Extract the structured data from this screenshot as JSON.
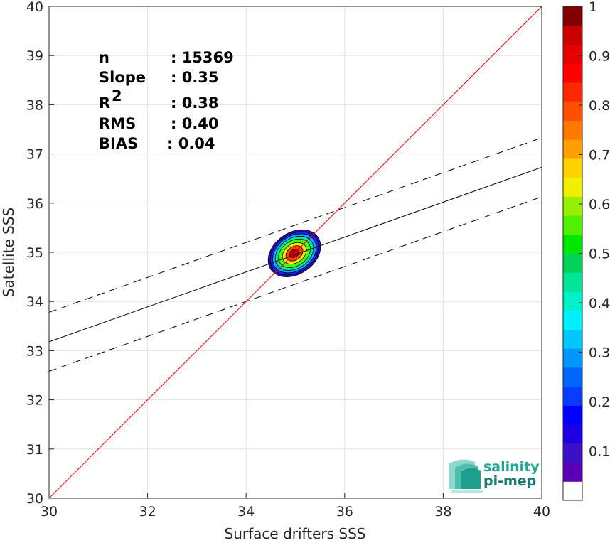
{
  "chart_data": {
    "type": "scatter",
    "subtype": "density-contour",
    "xlabel": "Surface drifters SSS",
    "ylabel": "Satellite SSS",
    "xlim": [
      30,
      40
    ],
    "ylim": [
      30,
      40
    ],
    "xticks": [
      "30",
      "32",
      "34",
      "36",
      "38",
      "40"
    ],
    "yticks": [
      "30",
      "31",
      "32",
      "33",
      "34",
      "35",
      "36",
      "37",
      "38",
      "39",
      "40"
    ],
    "grid": true,
    "stats": [
      {
        "label": "n",
        "value": ": 15369"
      },
      {
        "label": "Slope",
        "value": ": 0.35"
      },
      {
        "label": "R",
        "sup": "2",
        "value": ": 0.38"
      },
      {
        "label": "RMS",
        "value": ": 0.40"
      },
      {
        "label": "BIAS",
        "value": ": 0.04"
      }
    ],
    "lines": {
      "identity": {
        "x": [
          30,
          40
        ],
        "y": [
          30,
          40
        ],
        "color": "#ff0000"
      },
      "regression": {
        "x": [
          30,
          40
        ],
        "y": [
          33.18,
          36.73
        ],
        "color": "#000000"
      },
      "upper_band": {
        "x": [
          30,
          40
        ],
        "y": [
          33.78,
          37.33
        ],
        "color": "#000000",
        "dashed": true
      },
      "lower_band": {
        "x": [
          30,
          40
        ],
        "y": [
          32.58,
          36.13
        ],
        "color": "#000000",
        "dashed": true
      }
    },
    "density": {
      "center": [
        34.98,
        34.98
      ],
      "levels": [
        0.05,
        0.2,
        0.35,
        0.5,
        0.65,
        0.8,
        0.9,
        0.97
      ],
      "outer_half_widths": [
        0.58,
        0.42
      ],
      "colors": [
        "#3b00b3",
        "#0a28ff",
        "#00b0ff",
        "#00e6b0",
        "#48ff00",
        "#ffe600",
        "#ff4000",
        "#b30000"
      ]
    },
    "colorbar": {
      "ticks": [
        "0.1",
        "0.2",
        "0.3",
        "0.4",
        "0.5",
        "0.6",
        "0.7",
        "0.8",
        "0.9",
        "1"
      ],
      "range": [
        0,
        1
      ],
      "colors": [
        "#ffffff",
        "#5a00b4",
        "#3c10c8",
        "#1e00e6",
        "#0000ff",
        "#0a3cff",
        "#0064ff",
        "#0096ff",
        "#00c8ff",
        "#00f0ff",
        "#00f0c8",
        "#00e696",
        "#00d25a",
        "#00e600",
        "#50f000",
        "#96f000",
        "#f0f000",
        "#ffd200",
        "#ffa000",
        "#ff7800",
        "#ff5000",
        "#ff2800",
        "#ff0000",
        "#e60000",
        "#c80000",
        "#820000"
      ]
    }
  },
  "logo": {
    "line1": "salinity",
    "line2": "pi-mep",
    "color1": "#26a69a",
    "color2": "#1a7a72"
  }
}
